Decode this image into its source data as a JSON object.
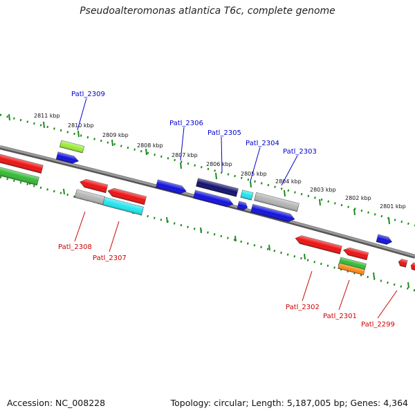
{
  "title": "Pseudoalteromonas atlantica T6c, complete genome",
  "footer": {
    "accession": "Accession: NC_008228",
    "topology": "Topology: circular; Length: 5,187,005 bp; Genes: 4,364"
  },
  "kbp_labels": [
    "2811 kbp",
    "2810 kbp",
    "2809 kbp",
    "2808 kbp",
    "2807 kbp",
    "2806 kbp",
    "2805 kbp",
    "2804 kbp",
    "2803 kbp",
    "2802 kbp",
    "2801 kbp"
  ],
  "gene_labels_top": [
    "Patl_2309",
    "Patl_2306",
    "Patl_2305",
    "Patl_2304",
    "Patl_2303"
  ],
  "gene_labels_bottom": [
    "Patl_2308",
    "Patl_2307",
    "Patl_2302",
    "Patl_2301",
    "Patl_2299"
  ],
  "colors": {
    "label_top": "#0000cc",
    "label_bottom": "#cc0000",
    "backbone": "#777777",
    "dotted_track": "#1a8a1a",
    "red": "#ee1111",
    "blue": "#1111dd",
    "navy": "#11116e",
    "cyan": "#22e6f0",
    "gray": "#b4b4b4",
    "green": "#33bb33",
    "lime": "#99ee33",
    "orange": "#ff8811"
  }
}
